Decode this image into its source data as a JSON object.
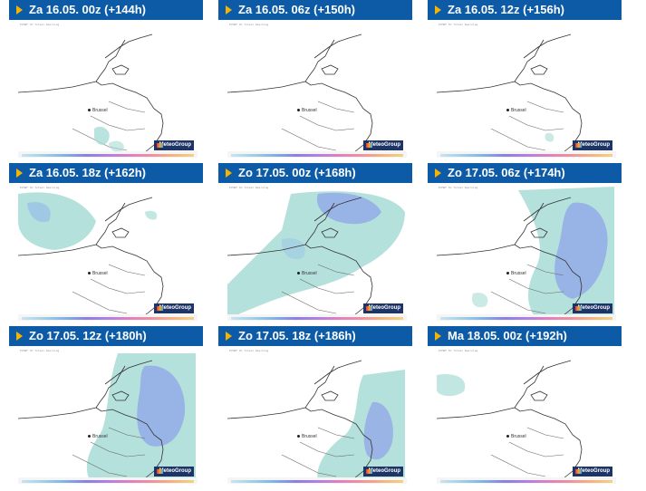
{
  "panels": [
    {
      "title": "Za 16.05. 00z (+144h)"
    },
    {
      "title": "Za 16.05. 06z (+150h)"
    },
    {
      "title": "Za 16.05. 12z (+156h)"
    },
    {
      "title": "Za 16.05. 18z (+162h)"
    },
    {
      "title": "Zo 17.05. 00z (+168h)"
    },
    {
      "title": "Zo 17.05. 06z (+174h)"
    },
    {
      "title": "Zo 17.05. 12z (+180h)"
    },
    {
      "title": "Zo 17.05. 18z (+186h)"
    },
    {
      "title": "Ma 18.05. 00z (+192h)"
    }
  ],
  "map": {
    "city_label": "Brussel",
    "logo_text": "MeteoGroup"
  },
  "colors": {
    "header_bg": "#0d5ba6",
    "header_arrow": "#f5b400",
    "precip_light": "#a8dcd6",
    "precip_heavy": "#8fa3e8"
  }
}
